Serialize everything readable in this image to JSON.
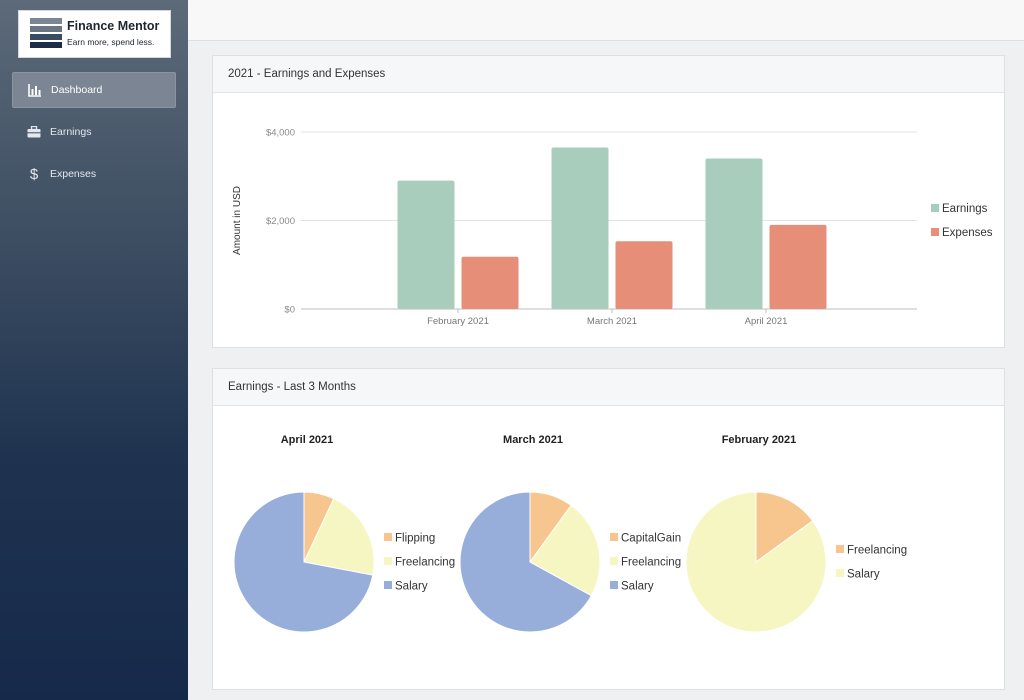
{
  "brand": {
    "name": "Finance Mentor",
    "tagline": "Earn more, spend less."
  },
  "nav": [
    {
      "label": "Dashboard",
      "icon": "bar-chart-icon",
      "active": true
    },
    {
      "label": "Earnings",
      "icon": "briefcase-icon",
      "active": false
    },
    {
      "label": "Expenses",
      "icon": "dollar-icon",
      "active": false
    }
  ],
  "panels": {
    "bar_title": "2021 - Earnings and Expenses",
    "pie_title": "Earnings - Last 3 Months"
  },
  "chart_data": [
    {
      "type": "bar",
      "title": "",
      "ylabel": "Amount in USD",
      "xlabel": "",
      "categories": [
        "February 2021",
        "March 2021",
        "April 2021"
      ],
      "ylim": [
        0,
        4000
      ],
      "yticks": [
        "$0",
        "$2,000",
        "$4,000"
      ],
      "ytick_values": [
        0,
        2000,
        4000
      ],
      "grid": true,
      "legend": "right",
      "series": [
        {
          "name": "Earnings",
          "values": [
            2900,
            3650,
            3400
          ],
          "color": "#a8cdbd"
        },
        {
          "name": "Expenses",
          "values": [
            1180,
            1530,
            1900
          ],
          "color": "#e68e77"
        }
      ]
    },
    {
      "type": "pie",
      "title": "April 2021",
      "legend": "right",
      "slices": [
        {
          "label": "Flipping",
          "value": 7,
          "color": "#f6c68e"
        },
        {
          "label": "Freelancing",
          "value": 21,
          "color": "#f6f6c2"
        },
        {
          "label": "Salary",
          "value": 72,
          "color": "#97aeda"
        }
      ]
    },
    {
      "type": "pie",
      "title": "March 2021",
      "legend": "right",
      "slices": [
        {
          "label": "CapitalGain",
          "value": 10,
          "color": "#f6c68e"
        },
        {
          "label": "Freelancing",
          "value": 23,
          "color": "#f6f6c2"
        },
        {
          "label": "Salary",
          "value": 67,
          "color": "#97aeda"
        }
      ]
    },
    {
      "type": "pie",
      "title": "February 2021",
      "legend": "right",
      "slices": [
        {
          "label": "Freelancing",
          "value": 15,
          "color": "#f6c68e"
        },
        {
          "label": "Salary",
          "value": 85,
          "color": "#f6f6c2"
        }
      ]
    }
  ]
}
